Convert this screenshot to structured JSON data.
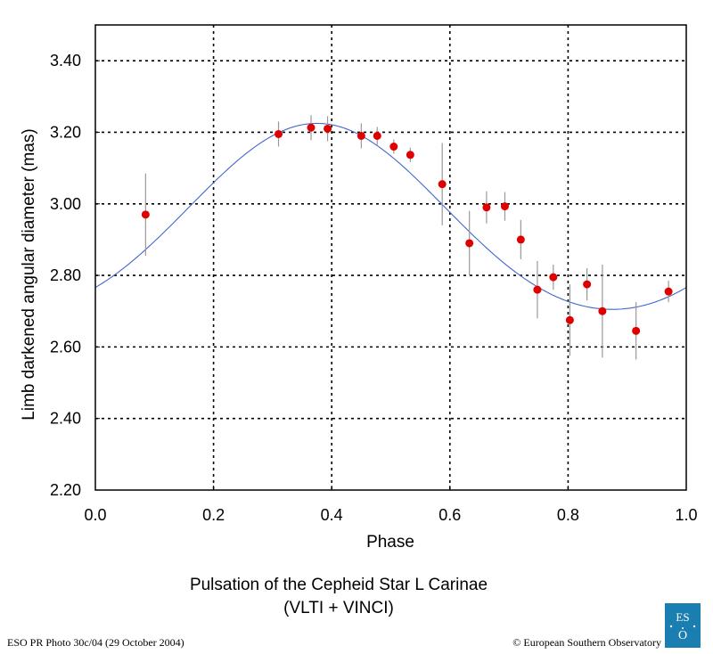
{
  "chart_data": {
    "type": "scatter",
    "title": "Pulsation of the Cepheid Star L Carinae",
    "subtitle": "(VLTI + VINCI)",
    "xlabel": "Phase",
    "ylabel": "Limb darkened angular diameter (mas)",
    "xlim": [
      0.0,
      1.0
    ],
    "ylim": [
      2.2,
      3.5
    ],
    "x_ticks": [
      "0.0",
      "0.2",
      "0.4",
      "0.6",
      "0.8",
      "1.0"
    ],
    "y_ticks": [
      "2.20",
      "2.40",
      "2.60",
      "2.80",
      "3.00",
      "3.20",
      "3.40"
    ],
    "x_grid": [
      0.2,
      0.4,
      0.6,
      0.8
    ],
    "y_grid": [
      2.4,
      2.6,
      2.8,
      3.0,
      3.2,
      3.4
    ],
    "grid": true,
    "points": [
      {
        "x": 0.085,
        "y": 2.97,
        "err": 0.115
      },
      {
        "x": 0.31,
        "y": 3.195,
        "err": 0.035
      },
      {
        "x": 0.365,
        "y": 3.213,
        "err": 0.035
      },
      {
        "x": 0.393,
        "y": 3.21,
        "err": 0.035
      },
      {
        "x": 0.45,
        "y": 3.19,
        "err": 0.035
      },
      {
        "x": 0.477,
        "y": 3.19,
        "err": 0.025
      },
      {
        "x": 0.505,
        "y": 3.16,
        "err": 0.02
      },
      {
        "x": 0.533,
        "y": 3.137,
        "err": 0.02
      },
      {
        "x": 0.587,
        "y": 3.055,
        "err": 0.115
      },
      {
        "x": 0.633,
        "y": 2.89,
        "err": 0.09
      },
      {
        "x": 0.662,
        "y": 2.99,
        "err": 0.045
      },
      {
        "x": 0.693,
        "y": 2.993,
        "err": 0.04
      },
      {
        "x": 0.72,
        "y": 2.9,
        "err": 0.055
      },
      {
        "x": 0.748,
        "y": 2.76,
        "err": 0.08
      },
      {
        "x": 0.775,
        "y": 2.795,
        "err": 0.035
      },
      {
        "x": 0.803,
        "y": 2.675,
        "err": 0.1
      },
      {
        "x": 0.832,
        "y": 2.775,
        "err": 0.045
      },
      {
        "x": 0.858,
        "y": 2.7,
        "err": 0.13
      },
      {
        "x": 0.915,
        "y": 2.645,
        "err": 0.08
      },
      {
        "x": 0.97,
        "y": 2.755,
        "err": 0.03
      }
    ],
    "fit_curve": {
      "mean": 2.95,
      "amplitude": 0.26,
      "peak_phase": 0.375,
      "harmonic2": 0.015,
      "color": "#4466cc"
    },
    "colors": {
      "points": "#e00000",
      "error_bars": "#999999",
      "fit": "#4466cc",
      "grid": "#000000"
    }
  },
  "footer": {
    "left": "ESO PR Photo 30c/04 (29 October 2004)",
    "right": "© European Southern Observatory"
  },
  "logo": {
    "text": "ESO",
    "color": "#1a7fb0"
  }
}
